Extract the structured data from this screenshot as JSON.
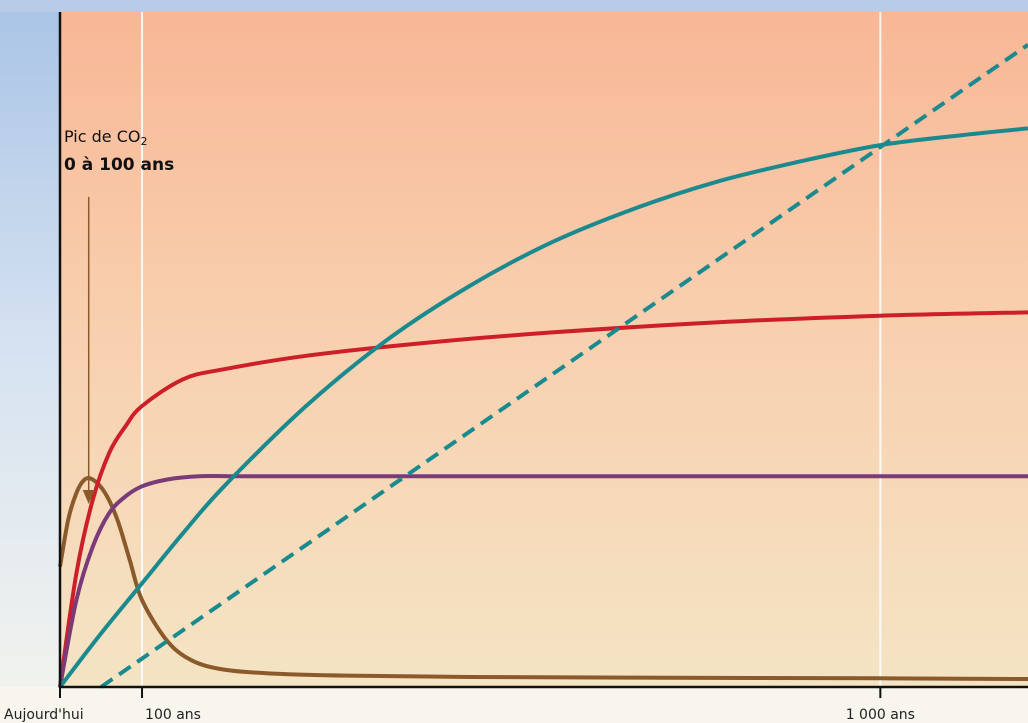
{
  "chart_data": {
    "type": "line",
    "title": "",
    "xlabel": "",
    "ylabel": "",
    "x_ticks": [
      {
        "label": "Aujourd'hui",
        "x": 0
      },
      {
        "label": "100 ans",
        "x": 100
      },
      {
        "label": "1 000 ans",
        "x": 1000
      }
    ],
    "xlim": [
      0,
      1180
    ],
    "ylim": [
      0,
      100
    ],
    "grid": "vertical lines at 100 and 1 000",
    "legend": "none",
    "annotation": {
      "line1_text": "Pic de CO",
      "line1_subscript": "2",
      "line2_text": "0 à 100 ans",
      "arrow_target_x": 35
    },
    "series": [
      {
        "color": "#8a5a2b",
        "style": "solid",
        "x": [
          0,
          10,
          20,
          30,
          40,
          55,
          70,
          85,
          100,
          130,
          160,
          200,
          260,
          350,
          500,
          700,
          1000,
          1180
        ],
        "values": [
          18,
          25,
          29,
          31,
          31,
          29,
          25,
          19,
          13,
          7,
          4,
          2.6,
          2,
          1.7,
          1.5,
          1.4,
          1.3,
          1.2
        ]
      },
      {
        "color": "#cc1f2a",
        "style": "solid",
        "x": [
          0,
          20,
          40,
          60,
          80,
          100,
          150,
          200,
          300,
          450,
          600,
          800,
          1000,
          1180
        ],
        "values": [
          0,
          17,
          28,
          35,
          39,
          42,
          46,
          47.5,
          49.5,
          51.5,
          53,
          54.5,
          55.5,
          56
        ]
      },
      {
        "color": "#7b3a78",
        "style": "solid",
        "x": [
          0,
          20,
          40,
          60,
          80,
          100,
          130,
          170,
          220,
          300,
          500,
          800,
          1180
        ],
        "values": [
          0,
          13,
          21,
          26,
          28.5,
          30,
          31,
          31.5,
          31.5,
          31.5,
          31.5,
          31.5,
          31.5
        ]
      },
      {
        "color": "#1a8a8e",
        "style": "solid",
        "x": [
          0,
          50,
          100,
          150,
          200,
          300,
          400,
          500,
          600,
          700,
          800,
          900,
          1000,
          1100,
          1180
        ],
        "values": [
          0,
          8,
          15.5,
          23,
          30,
          42,
          52,
          60,
          66.5,
          71.5,
          75.5,
          78.5,
          81,
          82.5,
          83.5
        ]
      },
      {
        "color": "#1a8a8e",
        "style": "dashed",
        "x": [
          50,
          1180
        ],
        "values": [
          0,
          96
        ]
      }
    ]
  }
}
